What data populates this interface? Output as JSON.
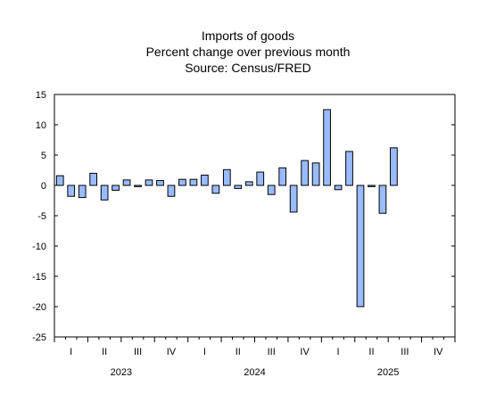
{
  "chart_data": {
    "type": "bar",
    "title": "Imports of goods",
    "subtitle": "Percent change over previous month",
    "source": "Source: Census/FRED",
    "xlabel": "",
    "ylabel": "",
    "ylim": [
      -25,
      15
    ],
    "y_ticks": [
      15,
      10,
      5,
      0,
      -5,
      -10,
      -15,
      -20,
      -25
    ],
    "grid": false,
    "legend": "none",
    "bar_color": "#99bbff",
    "bar_edge_color": "#000000",
    "x_start": "2023-01",
    "x_end": "2025-12",
    "quarter_labels": [
      "I",
      "II",
      "III",
      "IV",
      "I",
      "II",
      "III",
      "IV",
      "I",
      "II",
      "III",
      "IV"
    ],
    "year_labels": [
      "2023",
      "2024",
      "2025"
    ],
    "categories": [
      "2023-01",
      "2023-02",
      "2023-03",
      "2023-04",
      "2023-05",
      "2023-06",
      "2023-07",
      "2023-08",
      "2023-09",
      "2023-10",
      "2023-11",
      "2023-12",
      "2024-01",
      "2024-02",
      "2024-03",
      "2024-04",
      "2024-05",
      "2024-06",
      "2024-07",
      "2024-08",
      "2024-09",
      "2024-10",
      "2024-11",
      "2024-12",
      "2025-01",
      "2025-02",
      "2025-03",
      "2025-04",
      "2025-05",
      "2025-06",
      "2025-07",
      "2025-08",
      "2025-09",
      "2025-10",
      "2025-11",
      "2025-12"
    ],
    "values": [
      1.6,
      -1.8,
      -2.0,
      2.0,
      -2.4,
      -0.8,
      0.9,
      -0.2,
      0.9,
      0.8,
      -1.8,
      1.0,
      1.0,
      1.7,
      -1.3,
      2.6,
      -0.5,
      0.6,
      2.2,
      -1.5,
      2.9,
      -4.4,
      4.1,
      3.7,
      12.5,
      -0.7,
      5.6,
      -20.0,
      -0.2,
      -4.6,
      6.2,
      null,
      null,
      null,
      null,
      null
    ]
  }
}
